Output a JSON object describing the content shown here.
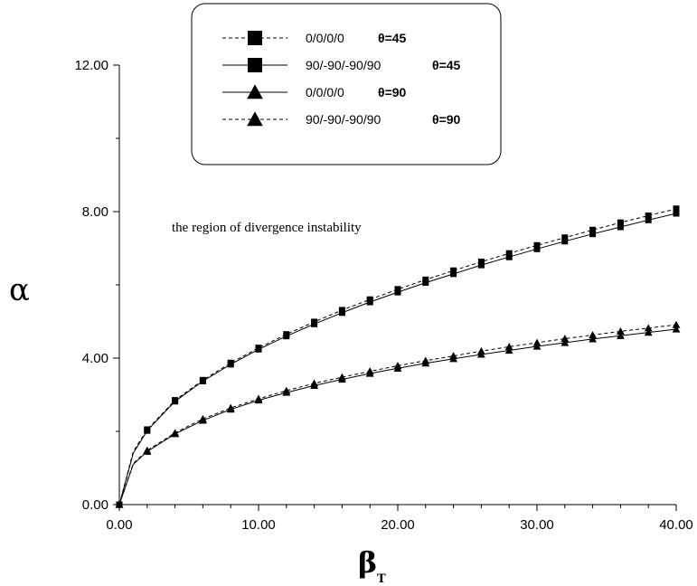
{
  "chart_data": {
    "type": "line",
    "xlabel_main": "β",
    "xlabel_sub": "T",
    "ylabel": "α",
    "xlim": [
      0,
      40
    ],
    "ylim": [
      0,
      12
    ],
    "x_ticks": [
      "0.00",
      "10.00",
      "20.00",
      "30.00",
      "40.00"
    ],
    "y_ticks": [
      "0.00",
      "4.00",
      "8.00",
      "12.00"
    ],
    "annotation": "the region of divergence instability",
    "legend_placement": "top-center",
    "series": [
      {
        "name": "0/0/0/0",
        "theta_label": "θ=45",
        "marker": "square",
        "line": "dashed",
        "x": [
          0,
          1,
          2,
          4,
          6,
          8,
          10,
          12,
          14,
          16,
          18,
          20,
          22,
          24,
          26,
          28,
          30,
          32,
          34,
          36,
          38,
          40
        ],
        "y": [
          0,
          1.45,
          2.05,
          2.85,
          3.4,
          3.87,
          4.28,
          4.65,
          4.99,
          5.31,
          5.6,
          5.88,
          6.14,
          6.39,
          6.63,
          6.86,
          7.08,
          7.29,
          7.5,
          7.7,
          7.89,
          8.08
        ]
      },
      {
        "name": "90/-90/-90/90",
        "theta_label": "θ=45",
        "marker": "square",
        "line": "solid",
        "x": [
          0,
          1,
          2,
          4,
          6,
          8,
          10,
          12,
          14,
          16,
          18,
          20,
          22,
          24,
          26,
          28,
          30,
          32,
          34,
          36,
          38,
          40
        ],
        "y": [
          0,
          1.4,
          2.02,
          2.82,
          3.37,
          3.83,
          4.24,
          4.6,
          4.93,
          5.24,
          5.53,
          5.8,
          6.06,
          6.3,
          6.54,
          6.76,
          6.98,
          7.19,
          7.39,
          7.58,
          7.77,
          7.95
        ]
      },
      {
        "name": "0/0/0/0",
        "theta_label": "θ=90",
        "marker": "triangle",
        "line": "solid",
        "x": [
          0,
          1,
          2,
          4,
          6,
          8,
          10,
          12,
          14,
          16,
          18,
          20,
          22,
          24,
          26,
          28,
          30,
          32,
          34,
          36,
          38,
          40
        ],
        "y": [
          0,
          1.1,
          1.45,
          1.93,
          2.3,
          2.6,
          2.85,
          3.06,
          3.25,
          3.42,
          3.58,
          3.72,
          3.86,
          3.98,
          4.1,
          4.21,
          4.32,
          4.42,
          4.52,
          4.61,
          4.7,
          4.79
        ]
      },
      {
        "name": "90/-90/-90/90",
        "theta_label": "θ=90",
        "marker": "triangle",
        "line": "dashed",
        "x": [
          0,
          1,
          2,
          4,
          6,
          8,
          10,
          12,
          14,
          16,
          18,
          20,
          22,
          24,
          26,
          28,
          30,
          32,
          34,
          36,
          38,
          40
        ],
        "y": [
          0,
          1.12,
          1.48,
          1.96,
          2.34,
          2.64,
          2.89,
          3.11,
          3.31,
          3.48,
          3.64,
          3.79,
          3.93,
          4.06,
          4.19,
          4.31,
          4.42,
          4.53,
          4.63,
          4.73,
          4.82,
          4.91
        ]
      }
    ]
  }
}
